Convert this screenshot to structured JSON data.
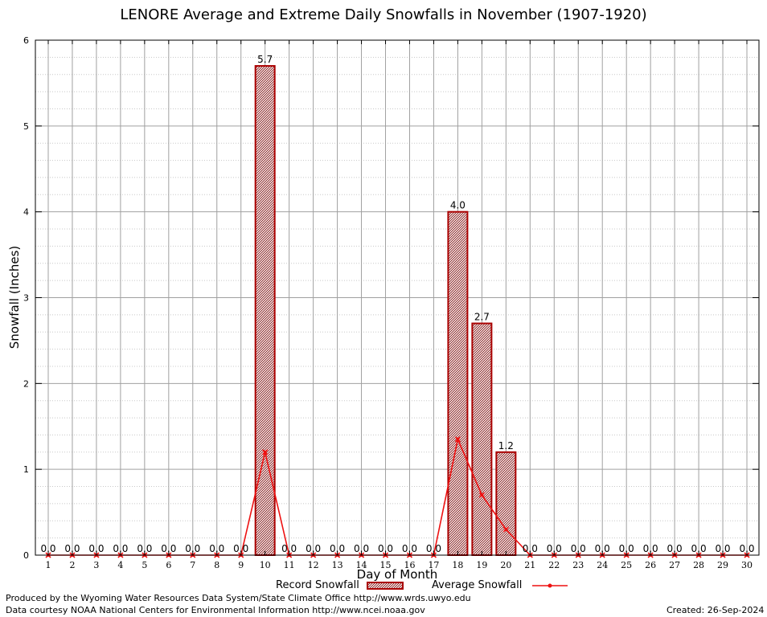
{
  "chart_data": {
    "type": "bar",
    "title": "LENORE Average and Extreme Daily Snowfalls in November (1907-1920)",
    "xlabel": "Day of Month",
    "ylabel": "Snowfall (Inches)",
    "ylim": [
      0,
      6
    ],
    "yticks": [
      "0",
      "1",
      "2",
      "3",
      "4",
      "5",
      "6"
    ],
    "grid": true,
    "legend_position": "bottom",
    "categories": [
      "1",
      "2",
      "3",
      "4",
      "5",
      "6",
      "7",
      "8",
      "9",
      "10",
      "11",
      "12",
      "13",
      "14",
      "15",
      "16",
      "17",
      "18",
      "19",
      "20",
      "21",
      "22",
      "23",
      "24",
      "25",
      "26",
      "27",
      "28",
      "29",
      "30"
    ],
    "series": [
      {
        "name": "Record Snowfall",
        "type": "bar",
        "values": [
          0,
          0,
          0,
          0,
          0,
          0,
          0,
          0,
          0,
          5.7,
          0,
          0,
          0,
          0,
          0,
          0,
          0,
          4.0,
          2.7,
          1.2,
          0,
          0,
          0,
          0,
          0,
          0,
          0,
          0,
          0,
          0
        ],
        "labels": [
          "0.0",
          "0.0",
          "0.0",
          "0.0",
          "0.0",
          "0.0",
          "0.0",
          "0.0",
          "0.0",
          "5.7",
          "0.0",
          "0.0",
          "0.0",
          "0.0",
          "0.0",
          "0.0",
          "0.0",
          "4.0",
          "2.7",
          "1.2",
          "0.0",
          "0.0",
          "0.0",
          "0.0",
          "0.0",
          "0.0",
          "0.0",
          "0.0",
          "0.0",
          "0.0"
        ]
      },
      {
        "name": "Average Snowfall",
        "type": "line",
        "values": [
          0,
          0,
          0,
          0,
          0,
          0,
          0,
          0,
          0,
          1.2,
          0,
          0,
          0,
          0,
          0,
          0,
          0,
          1.35,
          0.7,
          0.3,
          0,
          0,
          0,
          0,
          0,
          0,
          0,
          0,
          0,
          0
        ]
      }
    ],
    "colors": {
      "bar_outline": "#aa0000",
      "bar_fill": "#c49090",
      "line": "#ee1111",
      "grid": "#a0a0a0",
      "minor_grid": "#c8c8c8"
    }
  },
  "legend": {
    "record_label": "Record Snowfall",
    "average_label": "Average Snowfall"
  },
  "footer": {
    "produced_by": "Produced by the Wyoming Water Resources Data System/State Climate Office http://www.wrds.uwyo.edu",
    "courtesy": "Data courtesy NOAA National Centers for Environmental Information http://www.ncei.noaa.gov",
    "created": "Created:  26-Sep-2024"
  }
}
